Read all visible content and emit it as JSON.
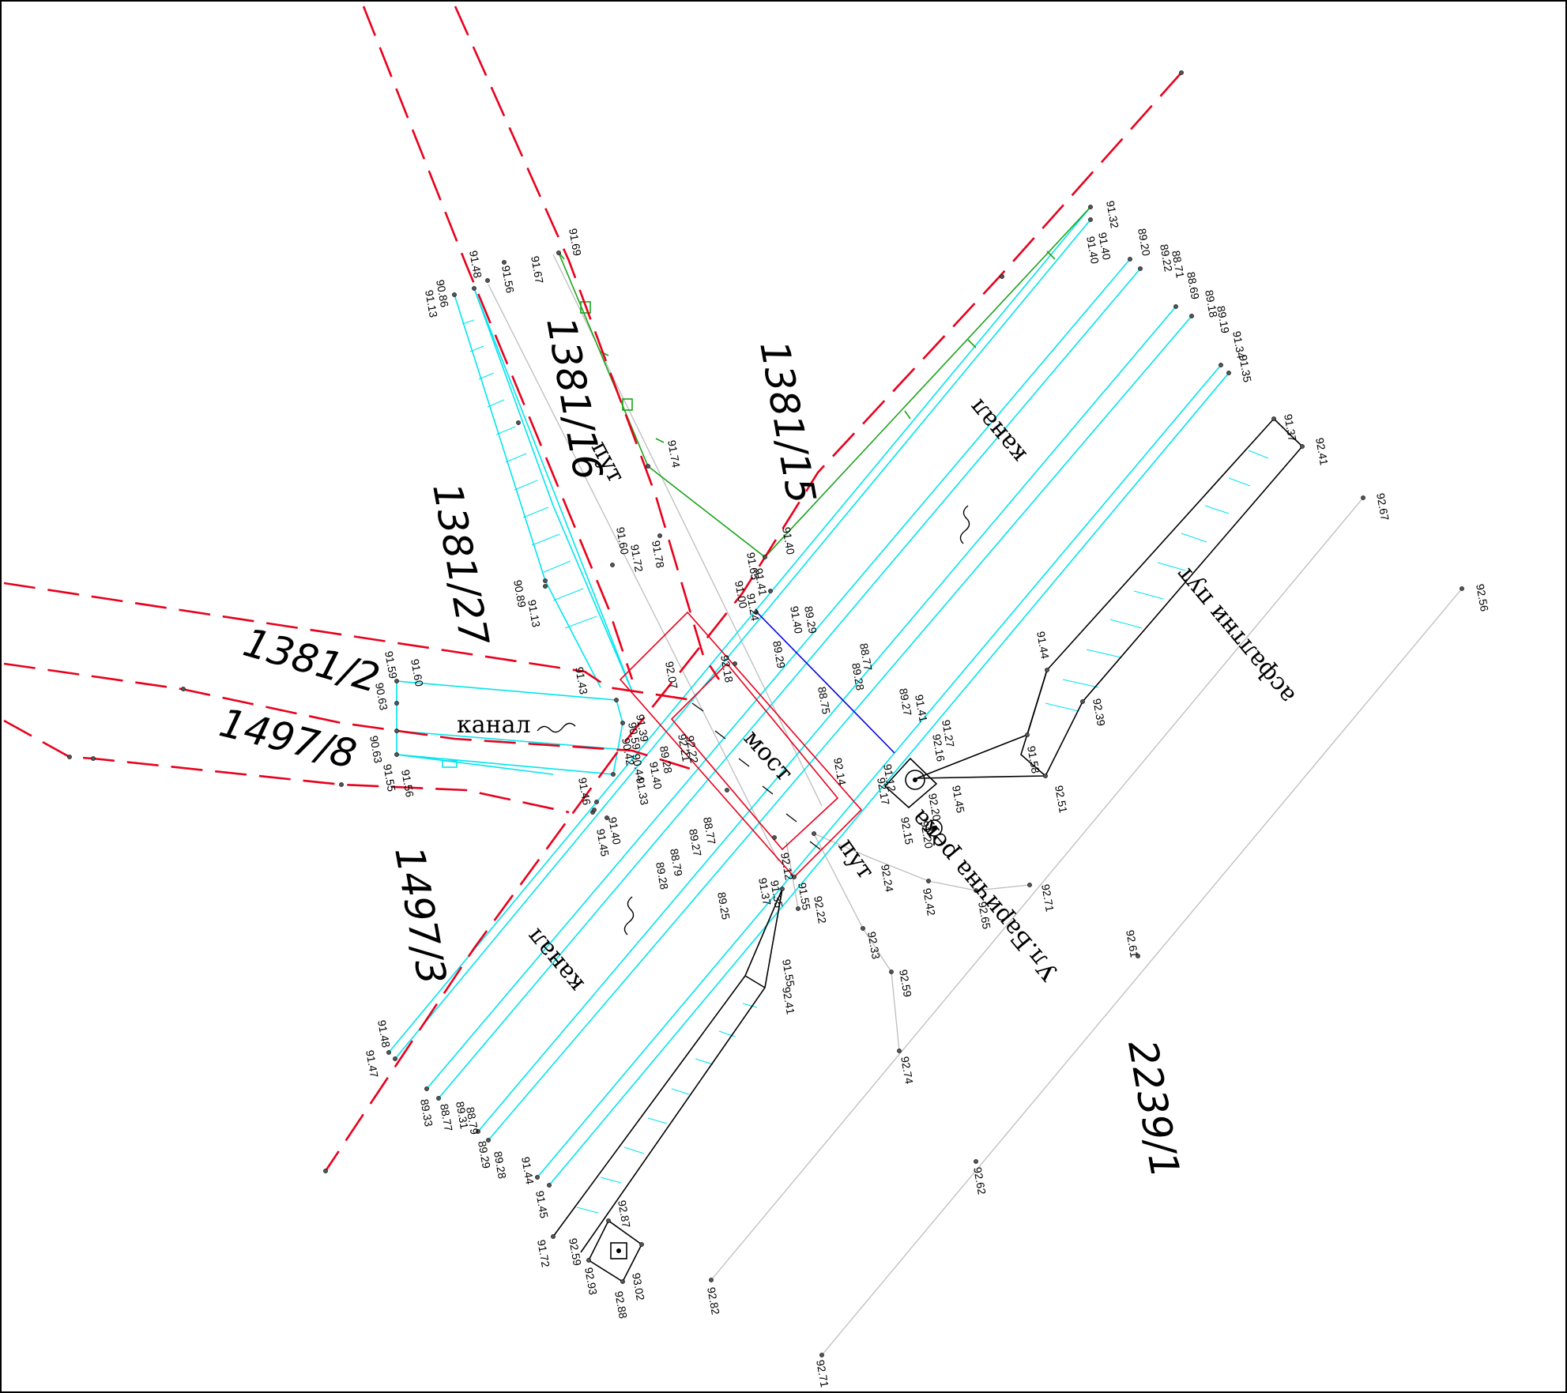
{
  "parcels": {
    "p1381_16": "1381/16",
    "p1381_15": "1381/15",
    "p1381_27": "1381/27",
    "p1381_2": "1381/2",
    "p1497_8": "1497/8",
    "p1497_3": "1497/3",
    "p2239_1": "2239/1"
  },
  "labels": {
    "put_top": "пут",
    "put_bridge": "пут",
    "kanal_upper": "канал",
    "kanal_left": "канал",
    "kanal_lower": "канал",
    "most": "мост",
    "asphalt": "асфалтни пут",
    "street": "Ул.Барична река"
  },
  "colors": {
    "boundary": "#e8001c",
    "canal": "#00e5ee",
    "fence": "#1aa31a",
    "bridge": "#e8001c",
    "profile": "#0000dd",
    "terrain": "#000000",
    "road": "#bdbdbd"
  },
  "elevations": [
    "91.69",
    "91.67",
    "91.56",
    "91.48",
    "90.86",
    "91.13",
    "91.74",
    "91.40",
    "91.60",
    "91.72",
    "91.78",
    "91.65",
    "91.41",
    "91.00",
    "91.24",
    "90.89",
    "91.13",
    "91.43",
    "92.07",
    "92.18",
    "89.29",
    "91.40",
    "89.29",
    "88.75",
    "88.77",
    "89.28",
    "89.27",
    "91.41",
    "91.27",
    "92.16",
    "91.12",
    "92.17",
    "92.15",
    "92.20",
    "91.45",
    "92.20",
    "91.32",
    "91.40",
    "91.40",
    "89.20",
    "89.22",
    "88.71",
    "88.69",
    "89.18",
    "89.19",
    "91.34",
    "91.35",
    "91.37",
    "92.41",
    "92.67",
    "92.56",
    "91.44",
    "92.39",
    "91.58",
    "92.51",
    "91.60",
    "91.59",
    "90.63",
    "90.63",
    "91.55",
    "91.56",
    "91.39",
    "90.59",
    "90.42",
    "90.44",
    "91.40",
    "91.33",
    "89.28",
    "92.22",
    "92.21",
    "92.14",
    "91.46",
    "91.40",
    "91.45",
    "88.77",
    "89.27",
    "88.79",
    "89.28",
    "89.25",
    "91.35",
    "91.37",
    "91.55",
    "92.22",
    "92.12",
    "92.24",
    "92.42",
    "92.65",
    "92.71",
    "92.33",
    "92.59",
    "92.74",
    "91.55",
    "92.41",
    "92.61",
    "92.62",
    "92.82",
    "92.71",
    "91.48",
    "91.47",
    "89.33",
    "88.77",
    "89.31",
    "88.79",
    "89.29",
    "89.28",
    "91.44",
    "91.45",
    "91.72",
    "92.59",
    "92.87",
    "92.93",
    "93.02",
    "92.88"
  ]
}
